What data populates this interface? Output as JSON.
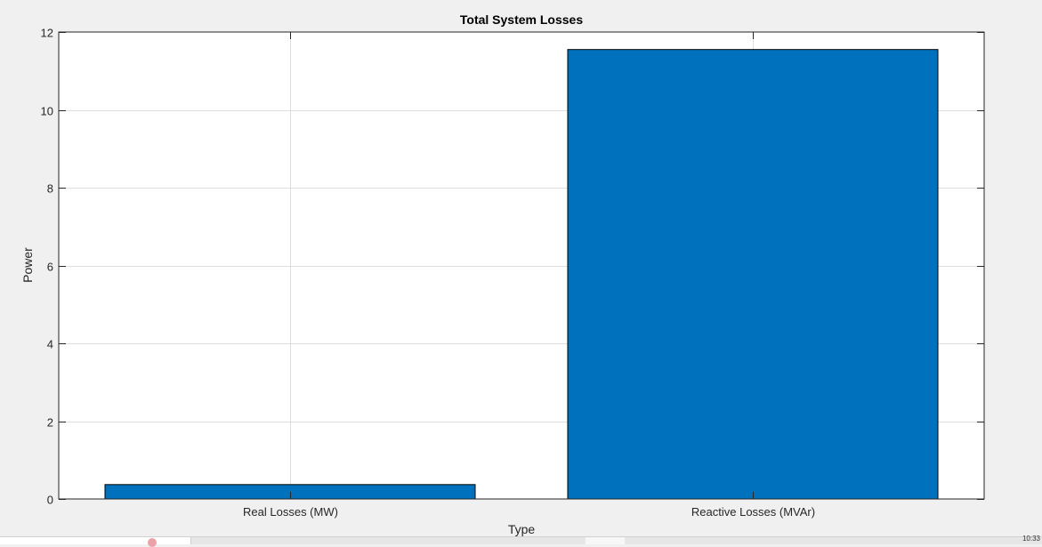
{
  "chart_data": {
    "type": "bar",
    "title": "Total System Losses",
    "xlabel": "Type",
    "ylabel": "Power",
    "categories": [
      "Real Losses (MW)",
      "Reactive Losses (MVAr)"
    ],
    "values": [
      0.37,
      11.55
    ],
    "ylim": [
      0,
      12
    ],
    "yticks": [
      0,
      2,
      4,
      6,
      8,
      10,
      12
    ],
    "grid": true,
    "bar_color": "#0072bd",
    "bar_edge_color": "#000000"
  },
  "taskbar": {
    "clock": "10:33"
  }
}
